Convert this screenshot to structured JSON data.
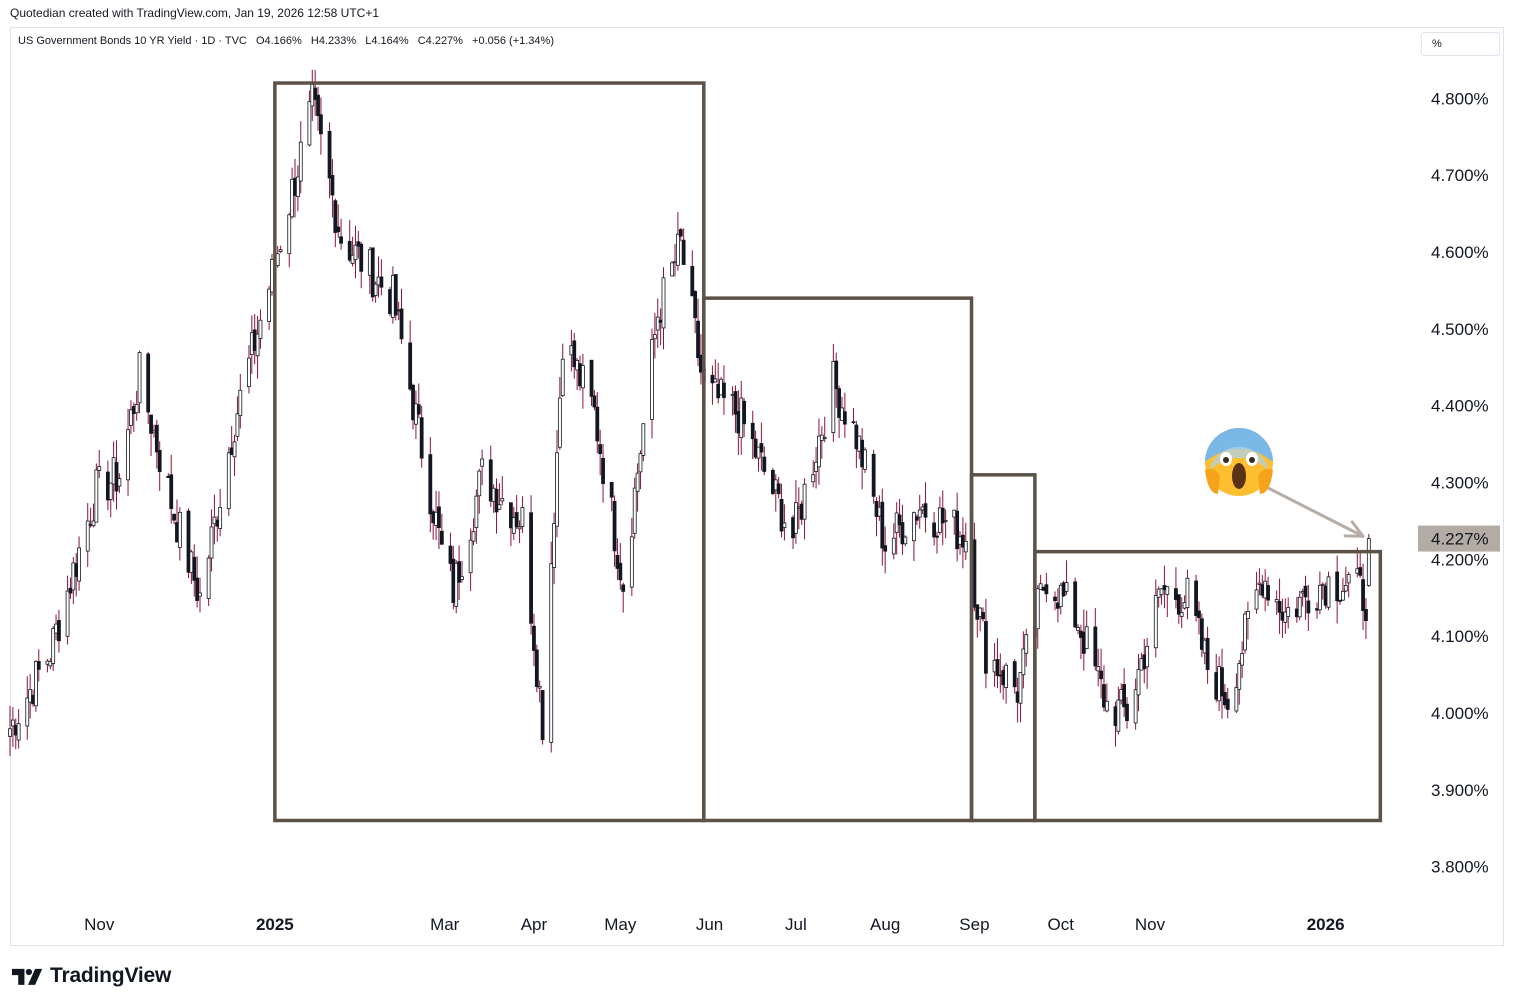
{
  "topbar": {
    "text": "Quotedian created with TradingView.com, Jan 19, 2026 12:58 UTC+1"
  },
  "legend": {
    "symbol": "US Government Bonds 10 YR Yield · 1D · TVC",
    "open": "O4.166%",
    "high": "H4.233%",
    "low": "L4.164%",
    "close": "C4.227%",
    "change": "+0.056 (+1.34%)"
  },
  "unit_button": "%",
  "price_label": {
    "text": "4.227%",
    "value": 4.227,
    "color": "#b2aca4"
  },
  "brand": "TradingView",
  "colors": {
    "up": "#ffffff",
    "up_border": "#131722",
    "down": "#131722",
    "wick": "#8a1538",
    "box": "#5d5248",
    "arrow": "#b7ada4",
    "grid": "#ffffff"
  },
  "icons": {
    "reaction": "face-screaming-in-fear-icon",
    "logo": "tradingview-logo-icon"
  },
  "chart_data": {
    "type": "candlestick",
    "title": "US Government Bonds 10 YR Yield",
    "ylabel": "%",
    "ylim": [
      3.75,
      4.85
    ],
    "yticks": [
      "4.800%",
      "4.700%",
      "4.600%",
      "4.500%",
      "4.400%",
      "4.300%",
      "4.200%",
      "4.100%",
      "4.000%",
      "3.900%",
      "3.800%"
    ],
    "ytick_values": [
      4.8,
      4.7,
      4.6,
      4.5,
      4.4,
      4.3,
      4.2,
      4.1,
      4.0,
      3.9,
      3.8
    ],
    "xticks": [
      {
        "label": "Nov",
        "bold": false,
        "date": "2024-11-01"
      },
      {
        "label": "2025",
        "bold": true,
        "date": "2025-01-01"
      },
      {
        "label": "Mar",
        "bold": false,
        "date": "2025-03-01"
      },
      {
        "label": "Apr",
        "bold": false,
        "date": "2025-04-01"
      },
      {
        "label": "May",
        "bold": false,
        "date": "2025-05-01"
      },
      {
        "label": "Jun",
        "bold": false,
        "date": "2025-06-01"
      },
      {
        "label": "Jul",
        "bold": false,
        "date": "2025-07-01"
      },
      {
        "label": "Aug",
        "bold": false,
        "date": "2025-08-01"
      },
      {
        "label": "Sep",
        "bold": false,
        "date": "2025-09-01"
      },
      {
        "label": "Oct",
        "bold": false,
        "date": "2025-10-01"
      },
      {
        "label": "Nov",
        "bold": false,
        "date": "2025-11-01"
      },
      {
        "label": "2026",
        "bold": true,
        "date": "2026-01-01"
      }
    ],
    "xrange": [
      "2024-10-01",
      "2026-01-31"
    ],
    "key_points": [
      {
        "date": "2024-10-01",
        "value": 3.98
      },
      {
        "date": "2024-10-15",
        "value": 4.08
      },
      {
        "date": "2024-10-31",
        "value": 4.29
      },
      {
        "date": "2024-11-08",
        "value": 4.31
      },
      {
        "date": "2024-11-15",
        "value": 4.44
      },
      {
        "date": "2024-11-27",
        "value": 4.26
      },
      {
        "date": "2024-12-06",
        "value": 4.15
      },
      {
        "date": "2024-12-18",
        "value": 4.38
      },
      {
        "date": "2024-12-31",
        "value": 4.57
      },
      {
        "date": "2025-01-14",
        "value": 4.79
      },
      {
        "date": "2025-01-24",
        "value": 4.62
      },
      {
        "date": "2025-02-11",
        "value": 4.54
      },
      {
        "date": "2025-02-28",
        "value": 4.21
      },
      {
        "date": "2025-03-04",
        "value": 4.16
      },
      {
        "date": "2025-03-14",
        "value": 4.31
      },
      {
        "date": "2025-03-28",
        "value": 4.25
      },
      {
        "date": "2025-04-04",
        "value": 3.99
      },
      {
        "date": "2025-04-09",
        "value": 4.34
      },
      {
        "date": "2025-04-11",
        "value": 4.49
      },
      {
        "date": "2025-04-22",
        "value": 4.39
      },
      {
        "date": "2025-05-02",
        "value": 4.17
      },
      {
        "date": "2025-05-14",
        "value": 4.52
      },
      {
        "date": "2025-05-22",
        "value": 4.61
      },
      {
        "date": "2025-05-30",
        "value": 4.42
      },
      {
        "date": "2025-06-11",
        "value": 4.39
      },
      {
        "date": "2025-06-30",
        "value": 4.23
      },
      {
        "date": "2025-07-14",
        "value": 4.43
      },
      {
        "date": "2025-07-22",
        "value": 4.36
      },
      {
        "date": "2025-08-01",
        "value": 4.22
      },
      {
        "date": "2025-08-13",
        "value": 4.27
      },
      {
        "date": "2025-08-29",
        "value": 4.23
      },
      {
        "date": "2025-09-05",
        "value": 4.08
      },
      {
        "date": "2025-09-16",
        "value": 4.03
      },
      {
        "date": "2025-09-26",
        "value": 4.18
      },
      {
        "date": "2025-10-07",
        "value": 4.12
      },
      {
        "date": "2025-10-17",
        "value": 4.01
      },
      {
        "date": "2025-10-24",
        "value": 4.0
      },
      {
        "date": "2025-11-05",
        "value": 4.16
      },
      {
        "date": "2025-11-14",
        "value": 4.15
      },
      {
        "date": "2025-11-21",
        "value": 4.06
      },
      {
        "date": "2025-11-28",
        "value": 4.02
      },
      {
        "date": "2025-12-10",
        "value": 4.18
      },
      {
        "date": "2025-12-18",
        "value": 4.13
      },
      {
        "date": "2025-12-31",
        "value": 4.17
      },
      {
        "date": "2026-01-09",
        "value": 4.17
      },
      {
        "date": "2026-01-15",
        "value": 4.15
      },
      {
        "date": "2026-01-16",
        "value": 4.227
      }
    ],
    "last": {
      "date": "2026-01-16",
      "open": 4.166,
      "high": 4.233,
      "low": 4.164,
      "close": 4.227
    },
    "boxes": [
      {
        "start": "2025-01-01",
        "end": "2025-05-30",
        "low": 3.86,
        "high": 4.82
      },
      {
        "start": "2025-05-30",
        "end": "2025-08-31",
        "low": 3.86,
        "high": 4.54
      },
      {
        "start": "2025-08-31",
        "end": "2025-09-22",
        "low": 3.86,
        "high": 4.31
      },
      {
        "start": "2025-09-22",
        "end": "2026-01-20",
        "low": 3.86,
        "high": 4.21
      }
    ],
    "annotation": {
      "type": "arrow",
      "from": {
        "date": "2025-12-03",
        "value": 4.31
      },
      "to": {
        "date": "2026-01-14",
        "value": 4.23
      }
    }
  }
}
